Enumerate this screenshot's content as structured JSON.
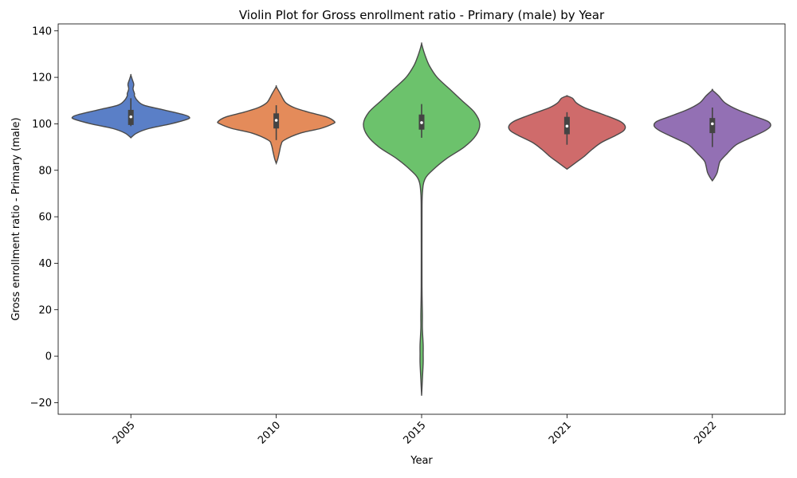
{
  "chart_data": {
    "type": "violin",
    "title": "Violin Plot for Gross enrollment ratio - Primary (male) by Year",
    "xlabel": "Year",
    "ylabel": "Gross enrollment ratio - Primary (male)",
    "categories": [
      "2005",
      "2010",
      "2015",
      "2021",
      "2022"
    ],
    "ylim": [
      -25,
      143
    ],
    "yticks": [
      -20,
      0,
      20,
      40,
      60,
      80,
      100,
      120,
      140
    ],
    "grid": false,
    "legend": "none",
    "series": [
      {
        "category": "2005",
        "color": "#5a7fc7",
        "profile": [
          [
            94,
            0
          ],
          [
            96,
            8
          ],
          [
            98,
            25
          ],
          [
            100,
            55
          ],
          [
            102,
            78
          ],
          [
            103,
            80
          ],
          [
            104,
            72
          ],
          [
            106,
            45
          ],
          [
            108,
            18
          ],
          [
            110,
            9
          ],
          [
            112,
            5
          ],
          [
            113,
            5
          ],
          [
            115,
            3
          ],
          [
            117,
            4
          ],
          [
            119,
            2
          ],
          [
            121,
            0
          ]
        ],
        "box": {
          "q1": 99.5,
          "median": 103,
          "q3": 106,
          "whisker_low": 99,
          "whisker_high": 111
        }
      },
      {
        "category": "2010",
        "color": "#e48b5a",
        "profile": [
          [
            83,
            0
          ],
          [
            85,
            2
          ],
          [
            88,
            4
          ],
          [
            91,
            6
          ],
          [
            93,
            10
          ],
          [
            96,
            30
          ],
          [
            98,
            55
          ],
          [
            100,
            70
          ],
          [
            101,
            72
          ],
          [
            103,
            62
          ],
          [
            105,
            40
          ],
          [
            107,
            22
          ],
          [
            109,
            12
          ],
          [
            111,
            8
          ],
          [
            113,
            5
          ],
          [
            116,
            0
          ]
        ],
        "box": {
          "q1": 98,
          "median": 101.5,
          "q3": 104.5,
          "whisker_low": 93,
          "whisker_high": 108
        }
      },
      {
        "category": "2015",
        "color": "#6cc26c",
        "profile": [
          [
            -17,
            0
          ],
          [
            -10,
            1
          ],
          [
            -3,
            2
          ],
          [
            1,
            2
          ],
          [
            5,
            2
          ],
          [
            12,
            1
          ],
          [
            18,
            1
          ],
          [
            30,
            0.5
          ],
          [
            60,
            0.5
          ],
          [
            70,
            1
          ],
          [
            76,
            4
          ],
          [
            80,
            14
          ],
          [
            85,
            32
          ],
          [
            90,
            55
          ],
          [
            95,
            70
          ],
          [
            100,
            75
          ],
          [
            105,
            68
          ],
          [
            110,
            52
          ],
          [
            115,
            36
          ],
          [
            120,
            20
          ],
          [
            125,
            10
          ],
          [
            129,
            5
          ],
          [
            132,
            2
          ],
          [
            134.5,
            0
          ]
        ],
        "box": {
          "q1": 97.5,
          "median": 100.5,
          "q3": 104,
          "whisker_low": 94,
          "whisker_high": 108.5
        }
      },
      {
        "category": "2021",
        "color": "#cf6b6b",
        "profile": [
          [
            80.5,
            0
          ],
          [
            82,
            6
          ],
          [
            84,
            14
          ],
          [
            86,
            22
          ],
          [
            89,
            32
          ],
          [
            92,
            44
          ],
          [
            95,
            62
          ],
          [
            97,
            72
          ],
          [
            99,
            74
          ],
          [
            101,
            68
          ],
          [
            103,
            54
          ],
          [
            105,
            38
          ],
          [
            107,
            22
          ],
          [
            109,
            12
          ],
          [
            111,
            7
          ],
          [
            112,
            0
          ]
        ],
        "box": {
          "q1": 95.5,
          "median": 99,
          "q3": 103,
          "whisker_low": 91,
          "whisker_high": 105
        }
      },
      {
        "category": "2022",
        "color": "#9370b4",
        "profile": [
          [
            75.5,
            0
          ],
          [
            77,
            3
          ],
          [
            79,
            6
          ],
          [
            82,
            8
          ],
          [
            84,
            10
          ],
          [
            87,
            18
          ],
          [
            91,
            30
          ],
          [
            94,
            48
          ],
          [
            97,
            66
          ],
          [
            99,
            73
          ],
          [
            101,
            70
          ],
          [
            103,
            55
          ],
          [
            106,
            32
          ],
          [
            109,
            16
          ],
          [
            112,
            8
          ],
          [
            114.5,
            0
          ]
        ],
        "box": {
          "q1": 96,
          "median": 100,
          "q3": 102.5,
          "whisker_low": 90,
          "whisker_high": 107
        }
      }
    ]
  }
}
